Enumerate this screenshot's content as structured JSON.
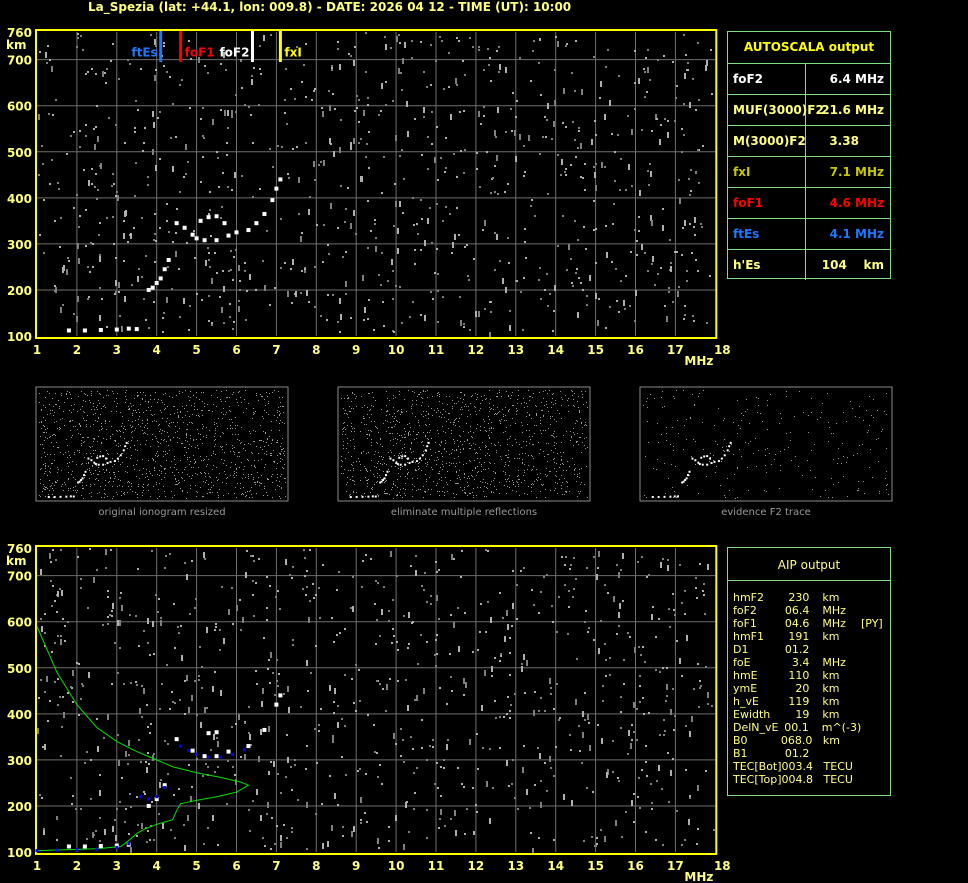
{
  "header": {
    "title": "La_Spezia (lat: +44.1, lon: 009.8) - DATE: 2026 04 12 - TIME (UT): 10:00"
  },
  "colors": {
    "foF2": "#ffffff",
    "fxI": "#ffff00",
    "foF1": "#ff0000",
    "ftEs": "#1e78ff",
    "frame": "#ffff00",
    "grid": "#6e6e6e",
    "table_border": "#7fe07f",
    "profile": "#00e000",
    "aip_trace": "#0000ff"
  },
  "autoscala": {
    "title": "AUTOSCALA output",
    "rows": [
      {
        "key": "foF2",
        "value": "6.4 MHz",
        "color": "#ffffff"
      },
      {
        "key": "MUF(3000)F2",
        "value": "21.6 MHz",
        "color": "#ffff80"
      },
      {
        "key": "M(3000)F2",
        "value": "3.38      ",
        "color": "#ffff80"
      },
      {
        "key": "fxI",
        "value": "7.1 MHz",
        "color": "#c8c800"
      },
      {
        "key": "foF1",
        "value": "4.6 MHz",
        "color": "#ff0000"
      },
      {
        "key": "ftEs",
        "value": "4.1 MHz",
        "color": "#1e78ff"
      },
      {
        "key": "h'Es",
        "value": "104    km",
        "color": "#ffff80"
      }
    ]
  },
  "aip": {
    "title": "AIP output",
    "rows": [
      [
        "hmF2",
        "230",
        "km",
        ""
      ],
      [
        "foF2",
        "06.4",
        "MHz",
        ""
      ],
      [
        "foF1",
        "04.6",
        "MHz",
        "[PY]"
      ],
      [
        "hmF1",
        "191",
        "km",
        ""
      ],
      [
        "D1",
        "01.2",
        "",
        ""
      ],
      [
        "foE",
        "3.4",
        "MHz",
        ""
      ],
      [
        "hmE",
        "110",
        "km",
        ""
      ],
      [
        "ymE",
        "20",
        "km",
        ""
      ],
      [
        "h_vE",
        "119",
        "km",
        ""
      ],
      [
        "Ewidth",
        "19",
        "km",
        ""
      ],
      [
        "DelN_vE",
        "00.1",
        "m^(-3)",
        ""
      ],
      [
        "B0",
        "068.0",
        "km",
        ""
      ],
      [
        "B1",
        "01.2",
        "",
        ""
      ],
      [
        "TEC[Bot]",
        "003.4",
        "TECU",
        ""
      ],
      [
        "TEC[Top]",
        "004.8",
        "TECU",
        ""
      ]
    ]
  },
  "thumbnails": [
    {
      "caption": "original ionogram resized"
    },
    {
      "caption": "eliminate multiple reflections"
    },
    {
      "caption": "evidence F2 trace"
    }
  ],
  "chart_data": [
    {
      "type": "scatter",
      "title": "",
      "xlabel": "MHz",
      "ylabel": "km",
      "xlim": [
        1,
        18
      ],
      "ylim": [
        100,
        760
      ],
      "xticks": [
        "1",
        "2",
        "3",
        "4",
        "5",
        "6",
        "7",
        "8",
        "9",
        "10",
        "11",
        "12",
        "13",
        "14",
        "15",
        "16",
        "17",
        "18"
      ],
      "yticks": [
        "100",
        "200",
        "300",
        "400",
        "500",
        "600",
        "700",
        "760"
      ],
      "grid": true,
      "markers": [
        {
          "label": "ftEs",
          "freq": 4.1,
          "color": "#1e78ff"
        },
        {
          "label": "foF1",
          "freq": 4.6,
          "color": "#ff0000"
        },
        {
          "label": "foF2",
          "freq": 6.4,
          "color": "#ffffff"
        },
        {
          "label": "fxI",
          "freq": 7.1,
          "color": "#ffff00"
        }
      ],
      "trace": [
        [
          1.8,
          112
        ],
        [
          2.2,
          112
        ],
        [
          2.6,
          113
        ],
        [
          3.0,
          114
        ],
        [
          3.3,
          116
        ],
        [
          3.5,
          115
        ],
        [
          3.8,
          200
        ],
        [
          3.9,
          205
        ],
        [
          4.0,
          215
        ],
        [
          4.1,
          225
        ],
        [
          4.2,
          245
        ],
        [
          4.3,
          265
        ],
        [
          4.5,
          345
        ],
        [
          4.7,
          335
        ],
        [
          4.9,
          320
        ],
        [
          5.0,
          312
        ],
        [
          5.2,
          308
        ],
        [
          5.5,
          308
        ],
        [
          5.8,
          318
        ],
        [
          6.0,
          325
        ],
        [
          6.3,
          330
        ],
        [
          5.1,
          350
        ],
        [
          5.3,
          358
        ],
        [
          5.5,
          360
        ],
        [
          5.7,
          345
        ],
        [
          6.5,
          345
        ],
        [
          6.7,
          365
        ],
        [
          6.9,
          395
        ],
        [
          7.0,
          420
        ],
        [
          7.1,
          440
        ]
      ]
    },
    {
      "type": "scatter",
      "title": "",
      "xlabel": "MHz",
      "ylabel": "km",
      "xlim": [
        1,
        18
      ],
      "ylim": [
        100,
        760
      ],
      "xticks": [
        "1",
        "2",
        "3",
        "4",
        "5",
        "6",
        "7",
        "8",
        "9",
        "10",
        "11",
        "12",
        "13",
        "14",
        "15",
        "16",
        "17",
        "18"
      ],
      "yticks": [
        "100",
        "200",
        "300",
        "400",
        "500",
        "600",
        "700",
        "760"
      ],
      "grid": true,
      "trace": [
        [
          1.8,
          112
        ],
        [
          2.2,
          112
        ],
        [
          2.6,
          113
        ],
        [
          3.0,
          114
        ],
        [
          3.3,
          116
        ],
        [
          3.8,
          200
        ],
        [
          4.0,
          215
        ],
        [
          4.2,
          245
        ],
        [
          4.5,
          345
        ],
        [
          4.9,
          320
        ],
        [
          5.2,
          308
        ],
        [
          5.5,
          308
        ],
        [
          5.8,
          318
        ],
        [
          6.3,
          330
        ],
        [
          5.3,
          358
        ],
        [
          5.5,
          360
        ],
        [
          6.7,
          365
        ],
        [
          7.0,
          420
        ],
        [
          7.1,
          440
        ]
      ],
      "aip_trace": [
        [
          1.0,
          103
        ],
        [
          1.5,
          104
        ],
        [
          2.0,
          105
        ],
        [
          2.5,
          106
        ],
        [
          3.0,
          110
        ],
        [
          3.3,
          118
        ],
        [
          3.6,
          220
        ],
        [
          3.8,
          215
        ],
        [
          4.0,
          220
        ],
        [
          4.2,
          240
        ],
        [
          4.6,
          330
        ],
        [
          4.8,
          320
        ],
        [
          5.0,
          312
        ],
        [
          5.3,
          306
        ],
        [
          5.6,
          306
        ],
        [
          5.9,
          312
        ],
        [
          6.2,
          322
        ]
      ],
      "profile": [
        [
          1.0,
          590
        ],
        [
          1.5,
          490
        ],
        [
          2.0,
          420
        ],
        [
          2.5,
          370
        ],
        [
          3.0,
          340
        ],
        [
          3.5,
          318
        ],
        [
          4.0,
          300
        ],
        [
          4.4,
          285
        ],
        [
          5.0,
          272
        ],
        [
          5.6,
          262
        ],
        [
          6.1,
          252
        ],
        [
          6.3,
          245
        ],
        [
          6.0,
          230
        ],
        [
          5.5,
          220
        ],
        [
          5.0,
          212
        ],
        [
          4.6,
          205
        ],
        [
          4.5,
          190
        ],
        [
          4.4,
          170
        ],
        [
          4.0,
          160
        ],
        [
          3.7,
          150
        ],
        [
          3.5,
          140
        ],
        [
          3.3,
          125
        ],
        [
          3.1,
          112
        ],
        [
          2.5,
          107
        ],
        [
          1.0,
          103
        ]
      ]
    }
  ]
}
